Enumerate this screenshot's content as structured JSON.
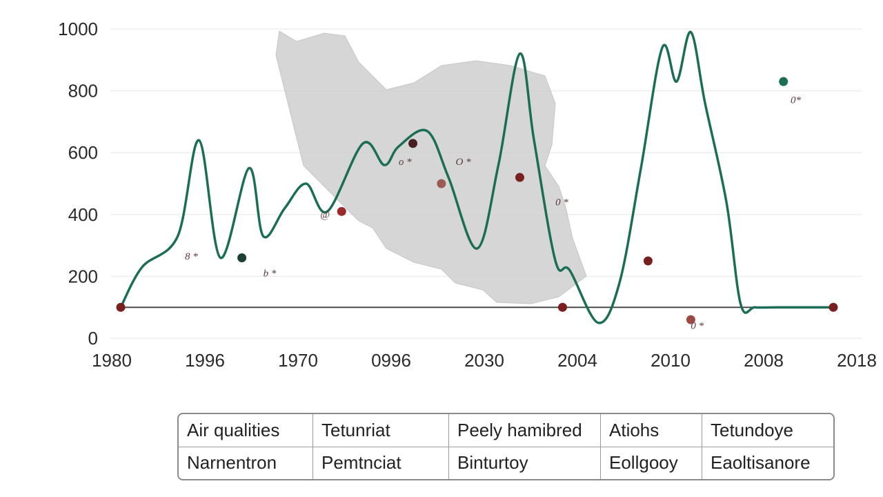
{
  "chart_data": {
    "type": "line",
    "title": "",
    "xlabel": "",
    "ylabel": "",
    "ylim": [
      0,
      1000
    ],
    "y_ticks": [
      "0",
      "200",
      "400",
      "600",
      "800",
      "1000"
    ],
    "x_tick_labels": [
      "1980",
      "1996",
      "1970",
      "0996",
      "2030",
      "2004",
      "2010",
      "2008",
      "2018"
    ],
    "grid": true,
    "baseline": 100,
    "background_image": "map-of-iran",
    "series": [
      {
        "color": "#1b6e55",
        "x": [
          0.0,
          0.03,
          0.08,
          0.11,
          0.14,
          0.18,
          0.2,
          0.23,
          0.26,
          0.29,
          0.34,
          0.37,
          0.39,
          0.43,
          0.46,
          0.5,
          0.53,
          0.56,
          0.58,
          0.61,
          0.63,
          0.67,
          0.7,
          0.73,
          0.76,
          0.78,
          0.8,
          0.82,
          0.85,
          0.87,
          0.89,
          0.92,
          0.94,
          0.96,
          0.98,
          1.0
        ],
        "values": [
          100,
          230,
          330,
          640,
          260,
          550,
          330,
          420,
          500,
          410,
          630,
          560,
          620,
          670,
          520,
          290,
          560,
          920,
          640,
          250,
          220,
          50,
          180,
          550,
          940,
          830,
          990,
          760,
          440,
          110,
          100,
          100,
          100,
          100,
          100,
          100
        ]
      }
    ],
    "markers": [
      {
        "x": 0.0,
        "y": 100,
        "color": "#7a1f1f"
      },
      {
        "x": 0.17,
        "y": 260,
        "color": "#1f3f35"
      },
      {
        "x": 0.31,
        "y": 410,
        "color": "#9b2b2b"
      },
      {
        "x": 0.41,
        "y": 630,
        "color": "#4a1f1f"
      },
      {
        "x": 0.45,
        "y": 500,
        "color": "#9b5b55"
      },
      {
        "x": 0.56,
        "y": 520,
        "color": "#7a1f1f"
      },
      {
        "x": 0.62,
        "y": 100,
        "color": "#7a1f1f"
      },
      {
        "x": 0.74,
        "y": 250,
        "color": "#7a1f1f"
      },
      {
        "x": 0.8,
        "y": 60,
        "color": "#9b4b45"
      },
      {
        "x": 0.93,
        "y": 830,
        "color": "#1b6e55"
      },
      {
        "x": 1.0,
        "y": 100,
        "color": "#7a1f1f"
      }
    ],
    "annotations": [
      "8 *",
      "b *",
      "@",
      "o *",
      "O *",
      "0 *",
      "0 *",
      "0*"
    ]
  },
  "legend_table": {
    "rows": [
      [
        "Air qualities",
        "Tetunriat",
        "Peely hamibred",
        "Atiohs",
        "Tetundoye"
      ],
      [
        "Narnentron",
        "Pemtnciat",
        "Binturtoy",
        "Eollgooy",
        "Eaoltisanore"
      ]
    ]
  }
}
